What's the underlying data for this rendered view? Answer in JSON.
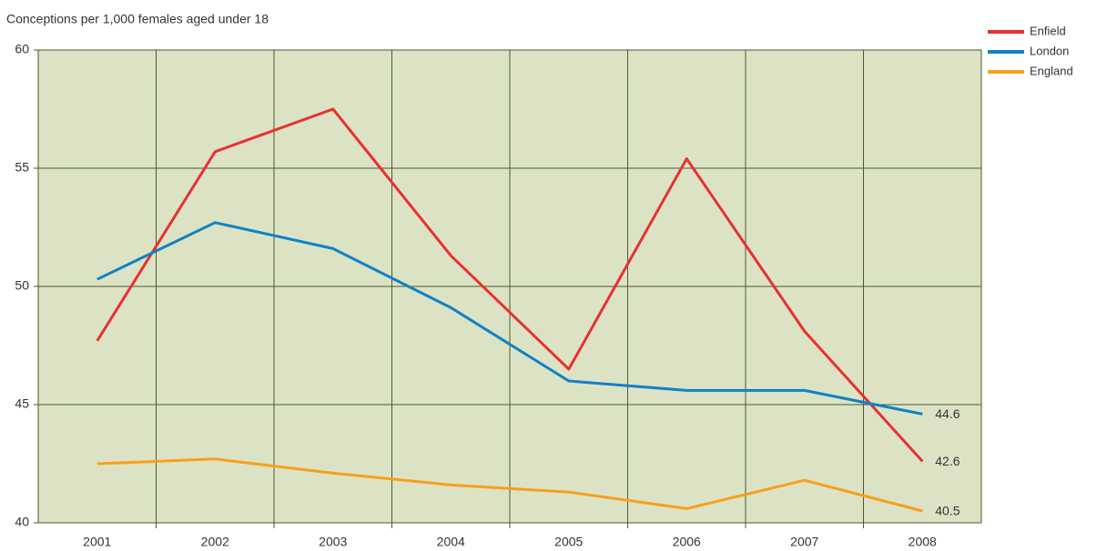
{
  "chart_data": {
    "type": "line",
    "title": "Conceptions per 1,000 females aged under 18",
    "categories": [
      "2001",
      "2002",
      "2003",
      "2004",
      "2005",
      "2006",
      "2007",
      "2008"
    ],
    "series": [
      {
        "name": "Enfield",
        "color": "#e8312f",
        "values": [
          47.7,
          55.7,
          57.5,
          51.3,
          46.5,
          55.4,
          48.1,
          42.6
        ]
      },
      {
        "name": "London",
        "color": "#0f82c4",
        "values": [
          50.3,
          52.7,
          51.6,
          49.1,
          46.0,
          45.6,
          45.6,
          44.6
        ]
      },
      {
        "name": "England",
        "color": "#f6a01a",
        "values": [
          42.5,
          42.7,
          42.1,
          41.6,
          41.3,
          40.6,
          41.8,
          40.5
        ]
      }
    ],
    "ylim": [
      40,
      60
    ],
    "yticks": [
      40,
      45,
      50,
      55,
      60
    ],
    "grid": true,
    "legend": "right"
  }
}
